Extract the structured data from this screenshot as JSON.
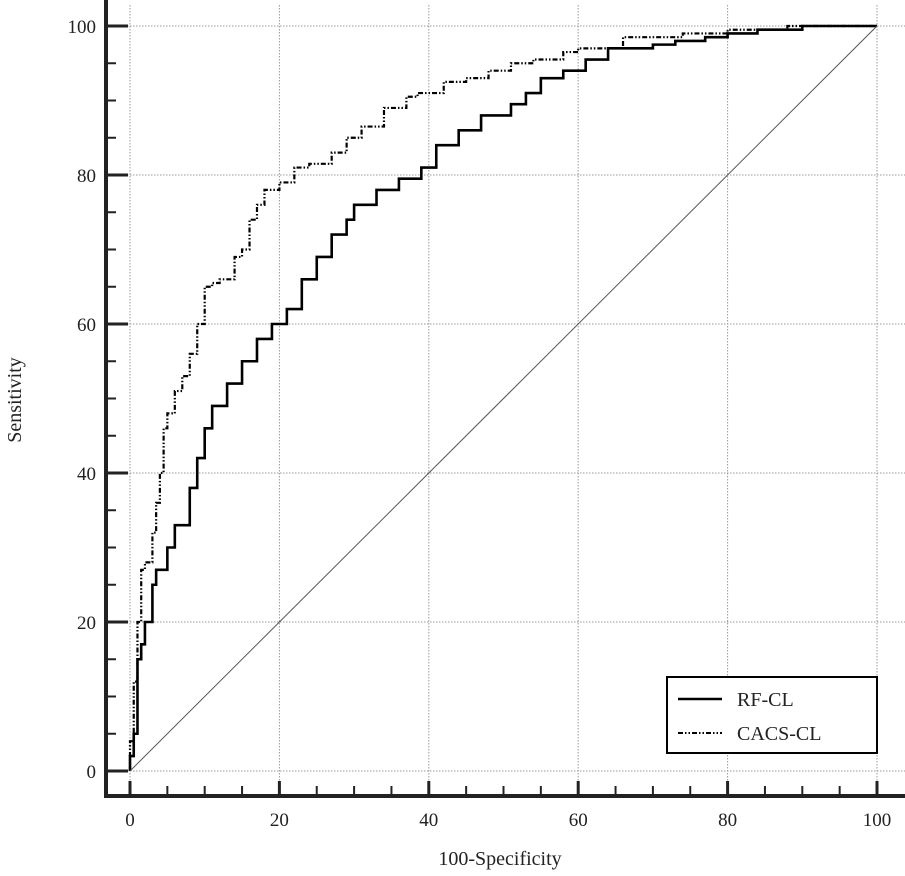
{
  "chart_data": {
    "type": "line",
    "xlabel": "100-Specificity",
    "ylabel": "Sensitivity",
    "xlim": [
      0,
      100
    ],
    "ylim": [
      0,
      100
    ],
    "xticks": [
      "0",
      "20",
      "40",
      "60",
      "80",
      "100"
    ],
    "yticks": [
      "0",
      "20",
      "40",
      "60",
      "80",
      "100"
    ],
    "grid": true,
    "legend_position": "bottom-right",
    "series": [
      {
        "name": "RF-CL",
        "style": "solid",
        "color": "#000000",
        "x": [
          0,
          0.5,
          1,
          1.5,
          2,
          3,
          3.5,
          5,
          6,
          8,
          9,
          10,
          11,
          13,
          15,
          17,
          19,
          21,
          23,
          25,
          27,
          29,
          30,
          33,
          36,
          39,
          41,
          44,
          47,
          51,
          53,
          55,
          58,
          61,
          64,
          65.5,
          70,
          73,
          77,
          80,
          84,
          90,
          100
        ],
        "y": [
          0,
          2,
          5,
          15,
          17,
          20,
          25,
          27,
          30,
          33,
          38,
          42,
          46,
          49,
          52,
          55,
          58,
          60,
          62,
          66,
          69,
          72,
          74,
          76,
          78,
          79.5,
          81,
          84,
          86,
          88,
          89.5,
          91,
          93,
          94,
          95.5,
          97,
          97,
          97.5,
          98,
          98.5,
          99,
          99.5,
          100
        ]
      },
      {
        "name": "CACS-CL",
        "style": "dash-dot-dot",
        "color": "#000000",
        "x": [
          0,
          0.5,
          1,
          1.5,
          2,
          3,
          3.5,
          4,
          4.5,
          5,
          6,
          7,
          8,
          9,
          10,
          11,
          12,
          14,
          15,
          16,
          17,
          18,
          20,
          22,
          24,
          27,
          29,
          31,
          34,
          37,
          38.5,
          42,
          45,
          48,
          51,
          54,
          58,
          60,
          66,
          69,
          74,
          80,
          88,
          100
        ],
        "y": [
          0,
          4,
          12,
          20,
          27,
          28,
          32,
          36,
          40,
          46,
          48,
          51,
          53,
          56,
          60,
          65,
          65.5,
          66,
          69,
          70,
          74,
          76,
          78,
          79,
          81,
          81.5,
          83,
          85,
          86.5,
          89,
          90.5,
          91,
          92.5,
          93,
          94,
          95,
          95.5,
          96.5,
          97,
          98.5,
          98.5,
          99,
          99.5,
          100
        ]
      },
      {
        "name": "",
        "style": "reference-diagonal",
        "color": "#555555",
        "x": [
          0,
          100
        ],
        "y": [
          0,
          100
        ]
      }
    ]
  }
}
